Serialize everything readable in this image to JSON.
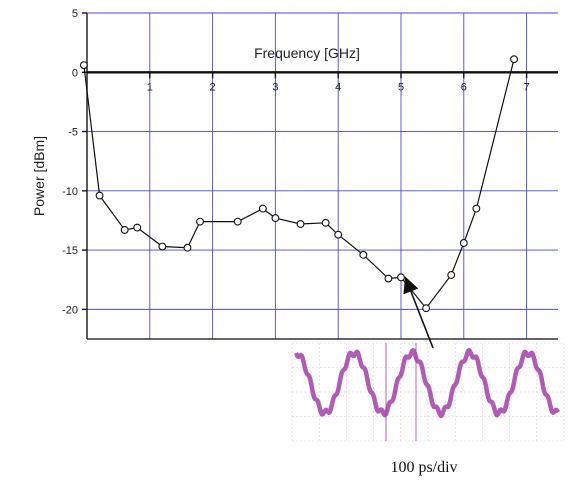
{
  "chart_data": {
    "type": "line",
    "xlabel": "Frequency [GHz]",
    "ylabel": "Power [dBm]",
    "xlim": [
      0,
      7.5
    ],
    "ylim": [
      -22.5,
      5
    ],
    "x_ticks": [
      1,
      2,
      3,
      4,
      5,
      6,
      7
    ],
    "y_ticks": [
      5,
      0,
      -5,
      -10,
      -15,
      -20
    ],
    "grid": true,
    "legend": "none",
    "series": [
      {
        "x": [
          -0.05,
          0.2,
          0.6,
          0.8,
          1.2,
          1.6,
          1.8,
          2.4,
          2.8,
          3.0,
          3.4,
          3.8,
          4.0,
          4.4,
          4.8,
          5.0,
          5.4,
          5.8,
          6.0,
          6.2,
          6.8
        ],
        "y": [
          0.6,
          -10.4,
          -13.3,
          -13.1,
          -14.7,
          -14.8,
          -12.6,
          -12.6,
          -11.5,
          -12.3,
          -12.8,
          -12.7,
          -13.7,
          -15.4,
          -17.4,
          -17.3,
          -19.9,
          -17.1,
          -14.4,
          -11.5,
          1.1
        ]
      }
    ],
    "annotation": {
      "point": [
        5.0,
        -17.3
      ],
      "inset_caption": "100 ps/div"
    }
  },
  "colors": {
    "grid": "#4a4ad0",
    "line": "#111111",
    "waveform": "#a23ea8"
  }
}
